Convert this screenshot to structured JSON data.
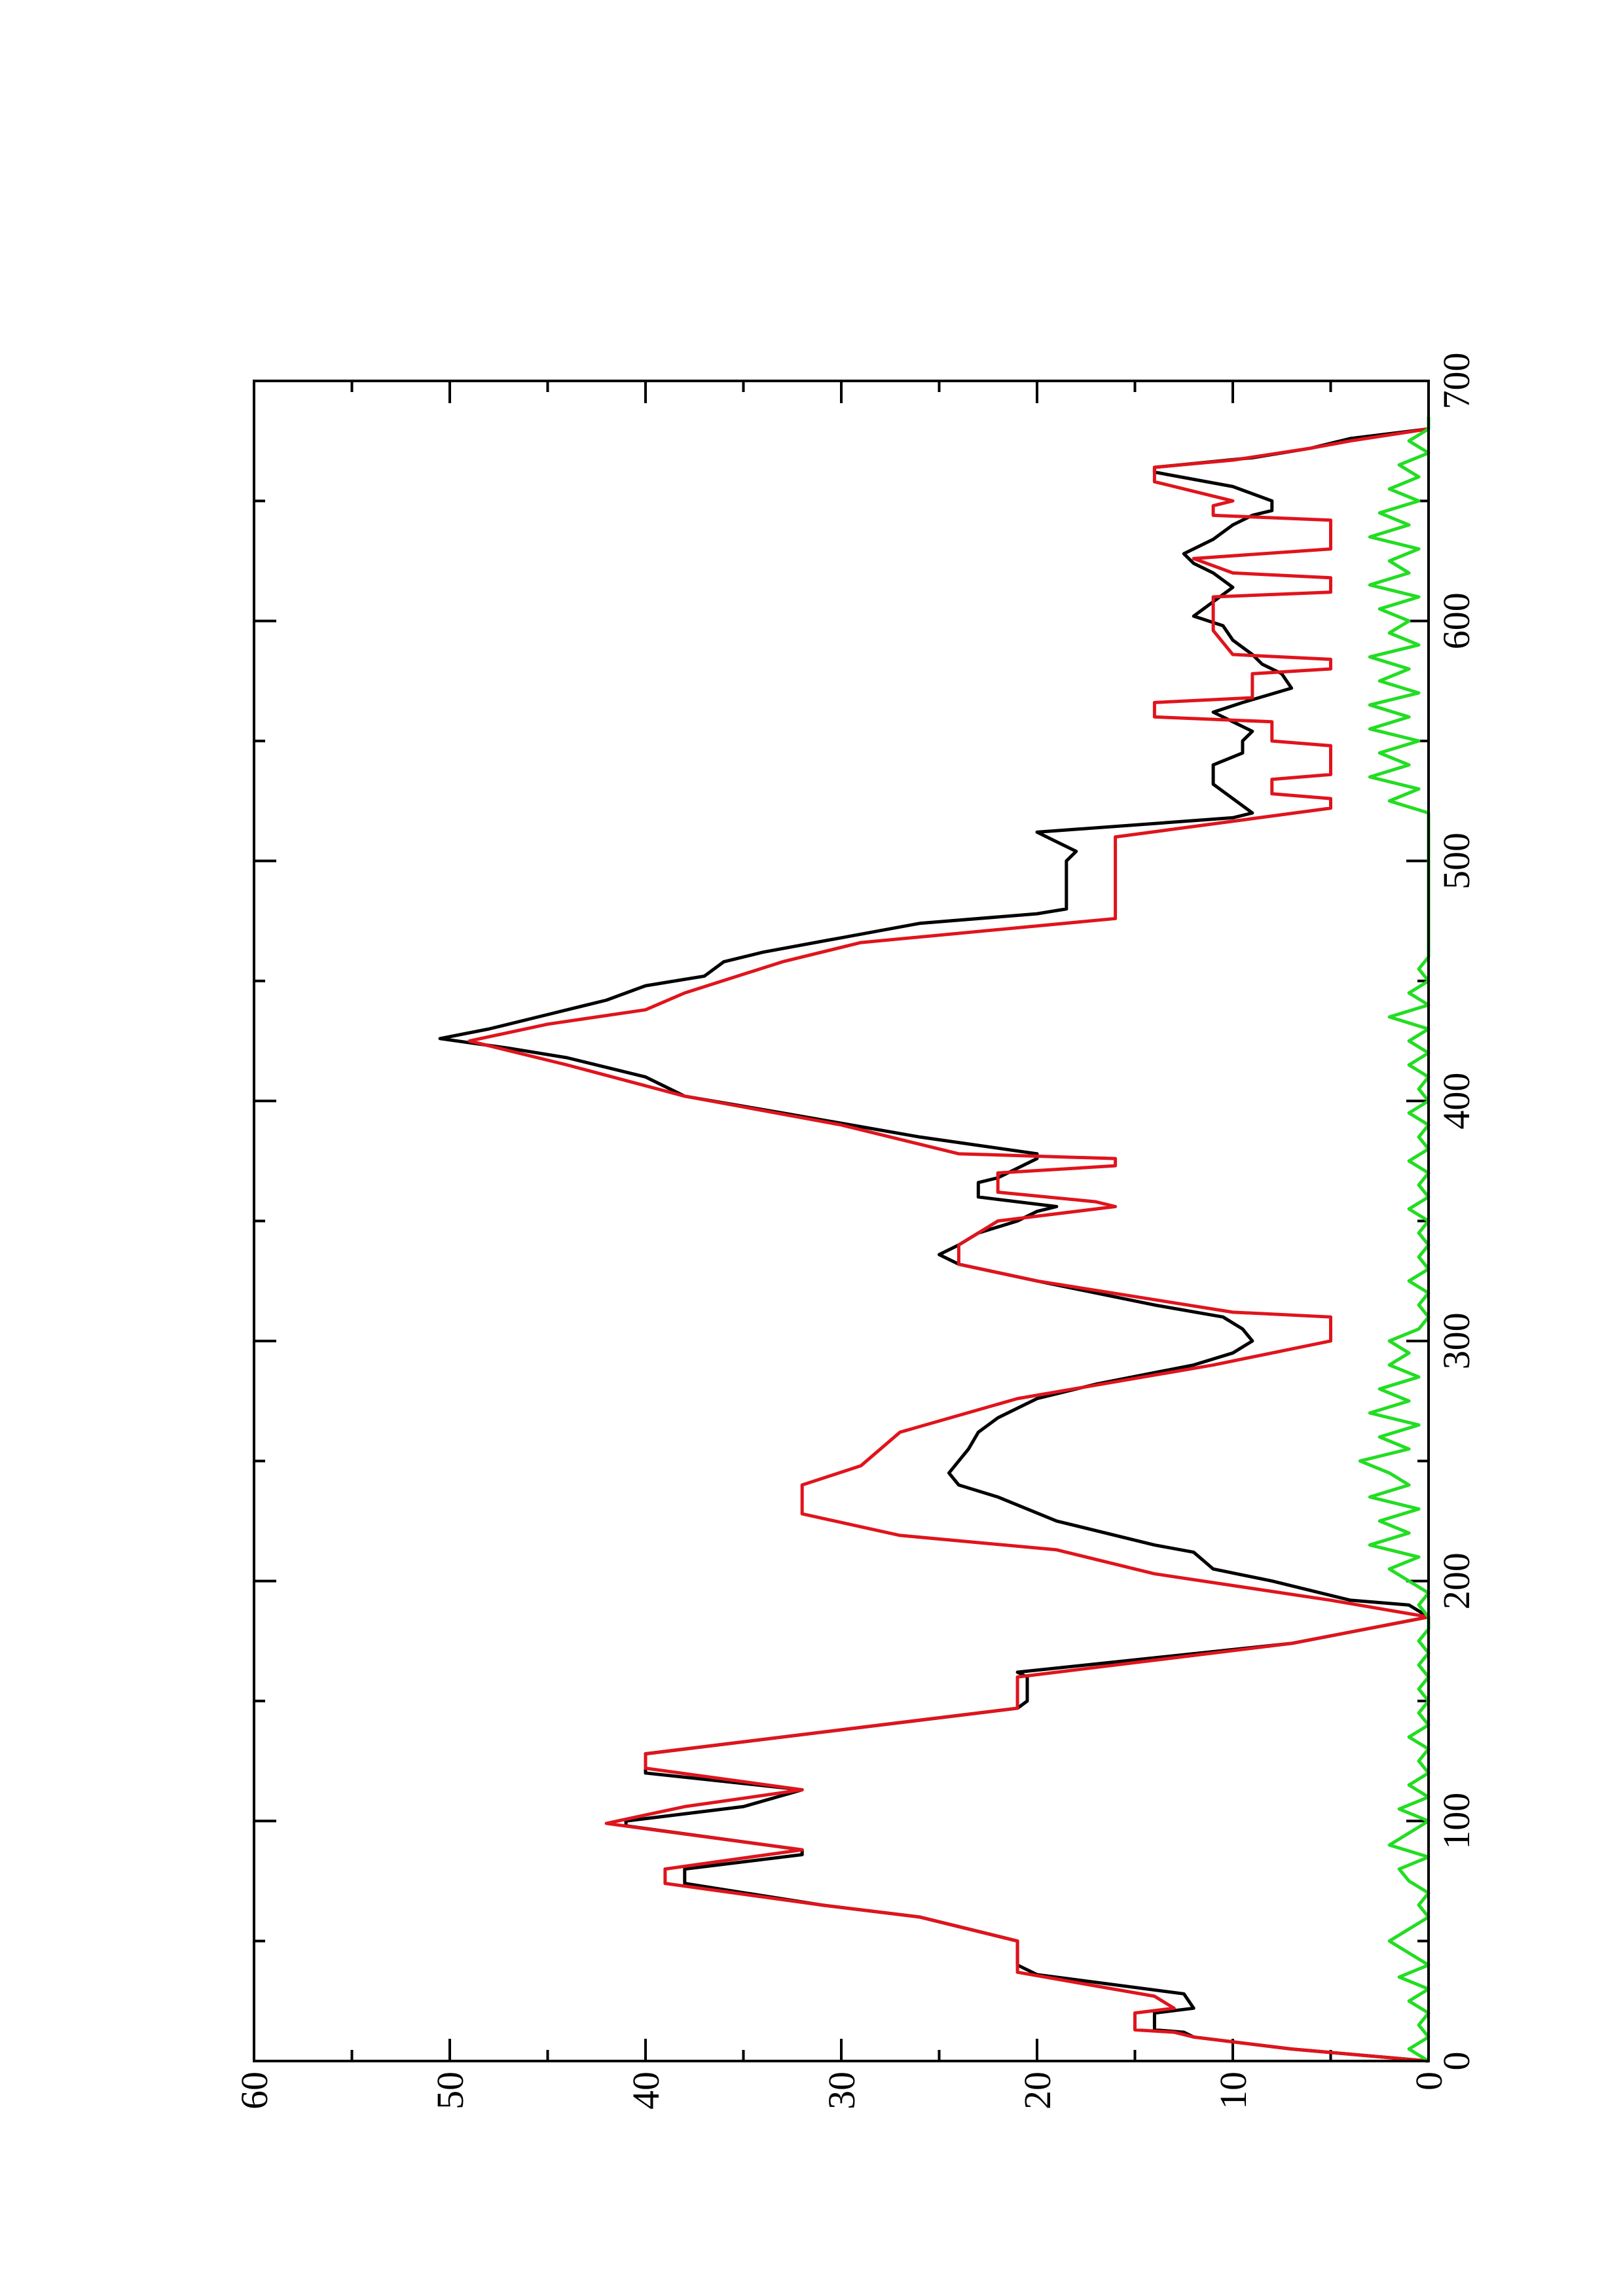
{
  "chart_data": {
    "type": "line",
    "xlim": [
      0,
      700
    ],
    "xticks": [
      0,
      100,
      200,
      300,
      400,
      500,
      600,
      700
    ],
    "ylim": [
      0,
      60
    ],
    "yticks": [
      0,
      10,
      20,
      30,
      40,
      50,
      60
    ],
    "rotated": true,
    "series": [
      {
        "color": "#000000",
        "x": [
          0,
          5,
          10,
          12,
          13,
          20,
          22,
          28,
          36,
          40,
          50,
          60,
          65,
          74,
          80,
          86,
          88,
          98,
          100,
          106,
          113,
          120,
          128,
          147,
          150,
          160,
          162,
          174,
          185,
          190,
          192,
          194,
          200,
          205,
          212,
          215,
          225,
          235,
          240,
          245,
          250,
          255,
          262,
          268,
          276,
          282,
          290,
          295,
          300,
          305,
          310,
          315,
          325,
          332,
          336,
          340,
          345,
          350,
          354,
          356,
          360,
          366,
          368,
          372,
          376,
          378,
          385,
          395,
          402,
          410,
          418,
          422,
          426,
          430,
          436,
          442,
          448,
          452,
          458,
          462,
          468,
          474,
          478,
          480,
          500,
          504,
          508,
          512,
          518,
          520,
          526,
          532,
          540,
          545,
          550,
          554,
          558,
          562,
          566,
          572,
          578,
          582,
          586,
          592,
          598,
          602,
          608,
          614,
          620,
          624,
          628,
          634,
          640,
          644,
          646,
          650,
          656,
          662,
          664,
          668,
          672,
          676,
          680
        ],
        "values": [
          0,
          7,
          12,
          12.5,
          14,
          14,
          12,
          12.5,
          20,
          21,
          21,
          26,
          31,
          38,
          38,
          32,
          32,
          41,
          41,
          35,
          32,
          40,
          40,
          21,
          20.5,
          20.5,
          21,
          7,
          0,
          1,
          4,
          5,
          8,
          11,
          12,
          14,
          19,
          22,
          24,
          24.5,
          24,
          23.5,
          23,
          22,
          20,
          17,
          12,
          10,
          9,
          9.5,
          10.5,
          14,
          20,
          24,
          25,
          24,
          23,
          21,
          20,
          19,
          23,
          23,
          22,
          21,
          20,
          20,
          26,
          33,
          38,
          40,
          44,
          47,
          50.5,
          48,
          45,
          42,
          40,
          37,
          36,
          34,
          30,
          26,
          20,
          18.5,
          18.5,
          18,
          19,
          20,
          10,
          9,
          10,
          11,
          11,
          9.5,
          9.5,
          9,
          10,
          11,
          9.5,
          7,
          7.5,
          8.5,
          9,
          10,
          10.5,
          12,
          11,
          10,
          11,
          12,
          12.5,
          11,
          10,
          9,
          8,
          8,
          10,
          14,
          14,
          9,
          6,
          4,
          0
        ]
      },
      {
        "color": "#e0141c",
        "x": [
          0,
          5,
          10,
          12,
          13,
          20,
          22,
          27,
          37,
          50,
          52,
          60,
          65,
          74,
          80,
          88,
          99,
          106,
          113,
          122,
          128,
          147,
          160,
          174,
          185,
          192,
          203,
          213,
          219,
          228,
          240,
          248,
          262,
          276,
          290,
          300,
          310,
          312,
          325,
          332,
          340,
          350,
          356,
          358,
          362,
          370,
          373,
          376,
          378,
          390,
          402,
          415,
          425,
          432,
          438,
          445,
          458,
          466,
          476,
          510,
          522,
          526,
          528,
          534,
          536,
          548,
          550,
          558,
          560,
          566,
          568,
          578,
          580,
          584,
          586,
          596,
          610,
          612,
          618,
          620,
          626,
          630,
          642,
          644,
          648,
          650,
          658,
          664,
          667,
          672,
          675,
          680
        ],
        "values": [
          0,
          7,
          12,
          13,
          15,
          15,
          13,
          14,
          21,
          21,
          22,
          26,
          31,
          39,
          39,
          32,
          42,
          38,
          32,
          40,
          40,
          21,
          21,
          7,
          0,
          5,
          14,
          19,
          27,
          32,
          32,
          29,
          27,
          21,
          11,
          5,
          5,
          10,
          20,
          24,
          24,
          22,
          16,
          17,
          22,
          22,
          16,
          16,
          24,
          30,
          38,
          44,
          49,
          45,
          40,
          38,
          33,
          29,
          16,
          16,
          5,
          5,
          8,
          8,
          5,
          5,
          8,
          8,
          14,
          14,
          9,
          9,
          5,
          5,
          10,
          11,
          11,
          5,
          5,
          10,
          12,
          5,
          5,
          11,
          11,
          10,
          14,
          14,
          10,
          6,
          4,
          0
        ]
      },
      {
        "color": "#22dd22",
        "x": [
          0,
          5,
          10,
          15,
          20,
          25,
          30,
          35,
          40,
          45,
          50,
          55,
          60,
          65,
          70,
          75,
          80,
          85,
          90,
          95,
          100,
          105,
          110,
          115,
          120,
          125,
          130,
          135,
          140,
          145,
          150,
          155,
          160,
          165,
          170,
          175,
          180,
          185,
          190,
          195,
          200,
          205,
          210,
          215,
          220,
          225,
          230,
          235,
          240,
          245,
          250,
          255,
          260,
          265,
          270,
          275,
          280,
          285,
          290,
          295,
          300,
          305,
          310,
          315,
          320,
          325,
          330,
          335,
          340,
          345,
          350,
          355,
          360,
          365,
          370,
          375,
          380,
          385,
          390,
          395,
          400,
          405,
          410,
          415,
          420,
          425,
          430,
          435,
          440,
          445,
          450,
          455,
          460,
          465,
          470,
          475,
          480,
          485,
          490,
          495,
          500,
          505,
          510,
          515,
          520,
          525,
          530,
          535,
          540,
          545,
          550,
          555,
          560,
          565,
          570,
          575,
          580,
          585,
          590,
          595,
          600,
          605,
          610,
          615,
          620,
          625,
          630,
          635,
          640,
          645,
          650,
          655,
          660,
          665,
          670,
          675,
          680,
          685
        ],
        "values": [
          0,
          1,
          0,
          0.5,
          0,
          1,
          0,
          1.5,
          0,
          1,
          2,
          1,
          0,
          0.5,
          0,
          1,
          1.5,
          0,
          2,
          1,
          0,
          1.5,
          0,
          1,
          0,
          0.5,
          0,
          1,
          0,
          0.5,
          0,
          0.5,
          0,
          0.5,
          0,
          0.5,
          0,
          0,
          0.5,
          0,
          1,
          2,
          0.5,
          3,
          1,
          2.5,
          0.5,
          3,
          1,
          2,
          3.5,
          1,
          2.5,
          0.5,
          3,
          1,
          2.5,
          0.5,
          2,
          1,
          2,
          0.5,
          0,
          0.5,
          0,
          1,
          0,
          0.5,
          0,
          0.5,
          0,
          1,
          0,
          0.5,
          0,
          1,
          0,
          0.5,
          0,
          1,
          0,
          0.5,
          0,
          1,
          0,
          1,
          0,
          2,
          0,
          1,
          0,
          0.5,
          0,
          0,
          0,
          0,
          0,
          0,
          0,
          0,
          0,
          0,
          0,
          0,
          0,
          2,
          0.5,
          3,
          1,
          2.5,
          0.5,
          3,
          1,
          3,
          0.5,
          2.5,
          1,
          3,
          0.5,
          2,
          1,
          2.5,
          0.5,
          3,
          1,
          2,
          0.5,
          3,
          1,
          2.5,
          0.5,
          2,
          0.5,
          1.5,
          0,
          1,
          0,
          0
        ]
      }
    ]
  }
}
